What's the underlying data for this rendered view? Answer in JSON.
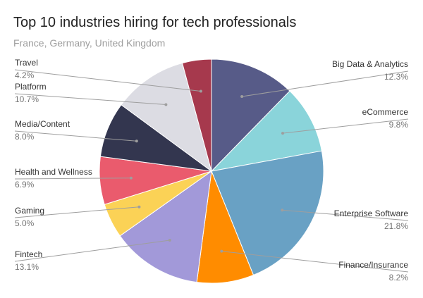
{
  "chart_data": {
    "type": "pie",
    "title": "Top 10 industries hiring for tech professionals",
    "subtitle": "France, Germany, United Kingdom",
    "slices": [
      {
        "label": "Big Data & Analytics",
        "value": 12.3,
        "pct_label": "12.3%",
        "color": "#575b88",
        "side": "right"
      },
      {
        "label": "eCommerce",
        "value": 9.8,
        "pct_label": "9.8%",
        "color": "#8ad4da",
        "side": "right"
      },
      {
        "label": "Enterprise Software",
        "value": 21.8,
        "pct_label": "21.8%",
        "color": "#69a1c4",
        "side": "right"
      },
      {
        "label": "Finance/Insurance",
        "value": 8.2,
        "pct_label": "8.2%",
        "color": "#ff8c00",
        "side": "right"
      },
      {
        "label": "Fintech",
        "value": 13.1,
        "pct_label": "13.1%",
        "color": "#a299d9",
        "side": "left"
      },
      {
        "label": "Gaming",
        "value": 5.0,
        "pct_label": "5.0%",
        "color": "#fbd256",
        "side": "left"
      },
      {
        "label": "Health and Wellness",
        "value": 6.9,
        "pct_label": "6.9%",
        "color": "#ea5b6d",
        "side": "left"
      },
      {
        "label": "Media/Content",
        "value": 8.0,
        "pct_label": "8.0%",
        "color": "#33364f",
        "side": "left"
      },
      {
        "label": "Platform",
        "value": 10.7,
        "pct_label": "10.7%",
        "color": "#dcdce3",
        "side": "left"
      },
      {
        "label": "Travel",
        "value": 4.2,
        "pct_label": "4.2%",
        "color": "#a6394d",
        "side": "left"
      }
    ],
    "start_angle_deg": 0,
    "direction": "clockwise",
    "legend": "labeled-callouts"
  }
}
